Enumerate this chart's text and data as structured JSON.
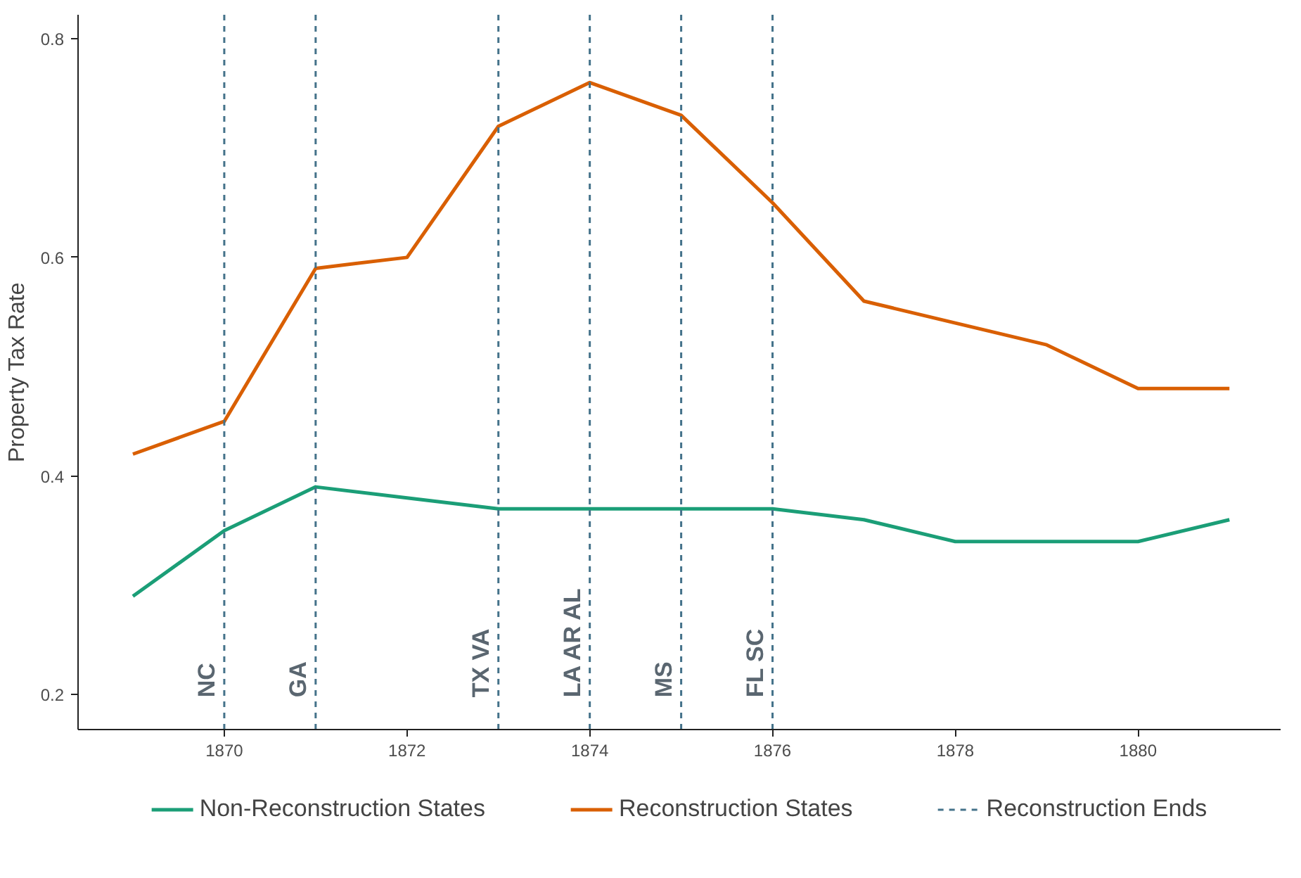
{
  "chart_data": {
    "type": "line",
    "ylabel": "Property Tax Rate",
    "x": [
      1869,
      1870,
      1871,
      1872,
      1873,
      1874,
      1875,
      1876,
      1877,
      1878,
      1879,
      1880,
      1881
    ],
    "series": [
      {
        "name": "Non-Reconstruction States",
        "color": "#1b9e77",
        "values": [
          0.29,
          0.35,
          0.39,
          0.38,
          0.37,
          0.37,
          0.37,
          0.37,
          0.36,
          0.34,
          0.34,
          0.34,
          0.36
        ]
      },
      {
        "name": "Reconstruction States",
        "color": "#d95f02",
        "values": [
          0.42,
          0.45,
          0.59,
          0.6,
          0.72,
          0.76,
          0.73,
          0.65,
          0.56,
          0.54,
          0.52,
          0.48,
          0.48
        ]
      }
    ],
    "xlim": [
      1868.4,
      1881.56
    ],
    "ylim": [
      0.168,
      0.822
    ],
    "xticks": [
      1870,
      1872,
      1874,
      1876,
      1878,
      1880
    ],
    "yticks": [
      0.2,
      0.4,
      0.6,
      0.8
    ],
    "ref_lines": [
      {
        "axis": "x",
        "value": 1870,
        "label": "NC",
        "color": "#44728a",
        "line_style": "dashed"
      },
      {
        "axis": "x",
        "value": 1871,
        "label": "GA",
        "color": "#44728a",
        "line_style": "dashed"
      },
      {
        "axis": "x",
        "value": 1873,
        "label": "TX  VA",
        "color": "#44728a",
        "line_style": "dashed"
      },
      {
        "axis": "x",
        "value": 1874,
        "label": "LA  AR  AL",
        "color": "#44728a",
        "line_style": "dashed"
      },
      {
        "axis": "x",
        "value": 1875,
        "label": "MS",
        "color": "#44728a",
        "line_style": "dashed"
      },
      {
        "axis": "x",
        "value": 1876,
        "label": "FL  SC",
        "color": "#44728a",
        "line_style": "dashed"
      }
    ],
    "annotations": [
      "Reconstruction Ends"
    ],
    "grid": false,
    "legend": "bottom",
    "marker": "none",
    "line_style": "solid"
  }
}
